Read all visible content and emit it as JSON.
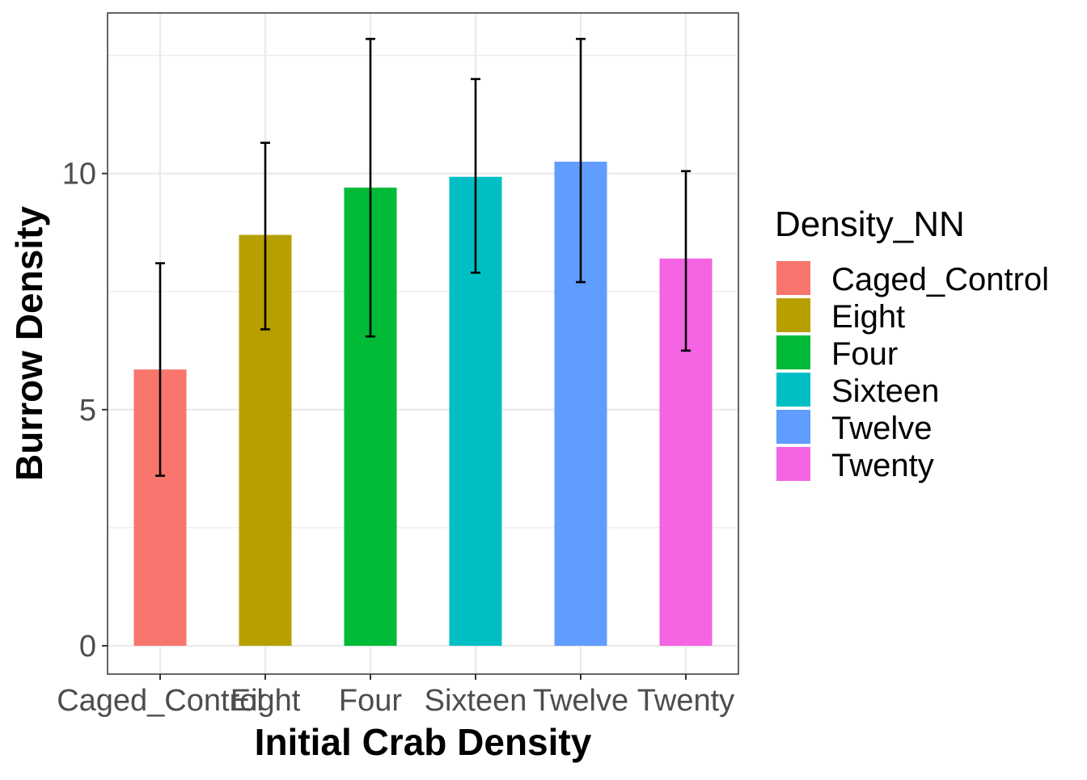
{
  "chart_data": {
    "type": "bar",
    "categories": [
      "Caged_Control",
      "Eight",
      "Four",
      "Sixteen",
      "Twelve",
      "Twenty"
    ],
    "values": [
      5.85,
      8.7,
      9.7,
      9.93,
      10.25,
      8.2
    ],
    "error_low": [
      3.6,
      6.7,
      6.55,
      7.9,
      7.7,
      6.25
    ],
    "error_high": [
      8.1,
      10.65,
      12.85,
      12.0,
      12.85,
      10.05
    ],
    "colors": [
      "#F8766D",
      "#B79F00",
      "#00BA38",
      "#00BFC4",
      "#619CFF",
      "#F564E3"
    ],
    "xlabel": "Initial Crab Density",
    "ylabel": "Burrow Density",
    "ylim": [
      -0.6,
      13.4
    ],
    "y_ticks": [
      0,
      5,
      10
    ],
    "y_tick_labels": [
      "0",
      "5",
      "10"
    ],
    "grid": true,
    "legend": {
      "title": "Density_NN",
      "position": "right",
      "entries": [
        "Caged_Control",
        "Eight",
        "Four",
        "Sixteen",
        "Twelve",
        "Twenty"
      ]
    }
  }
}
